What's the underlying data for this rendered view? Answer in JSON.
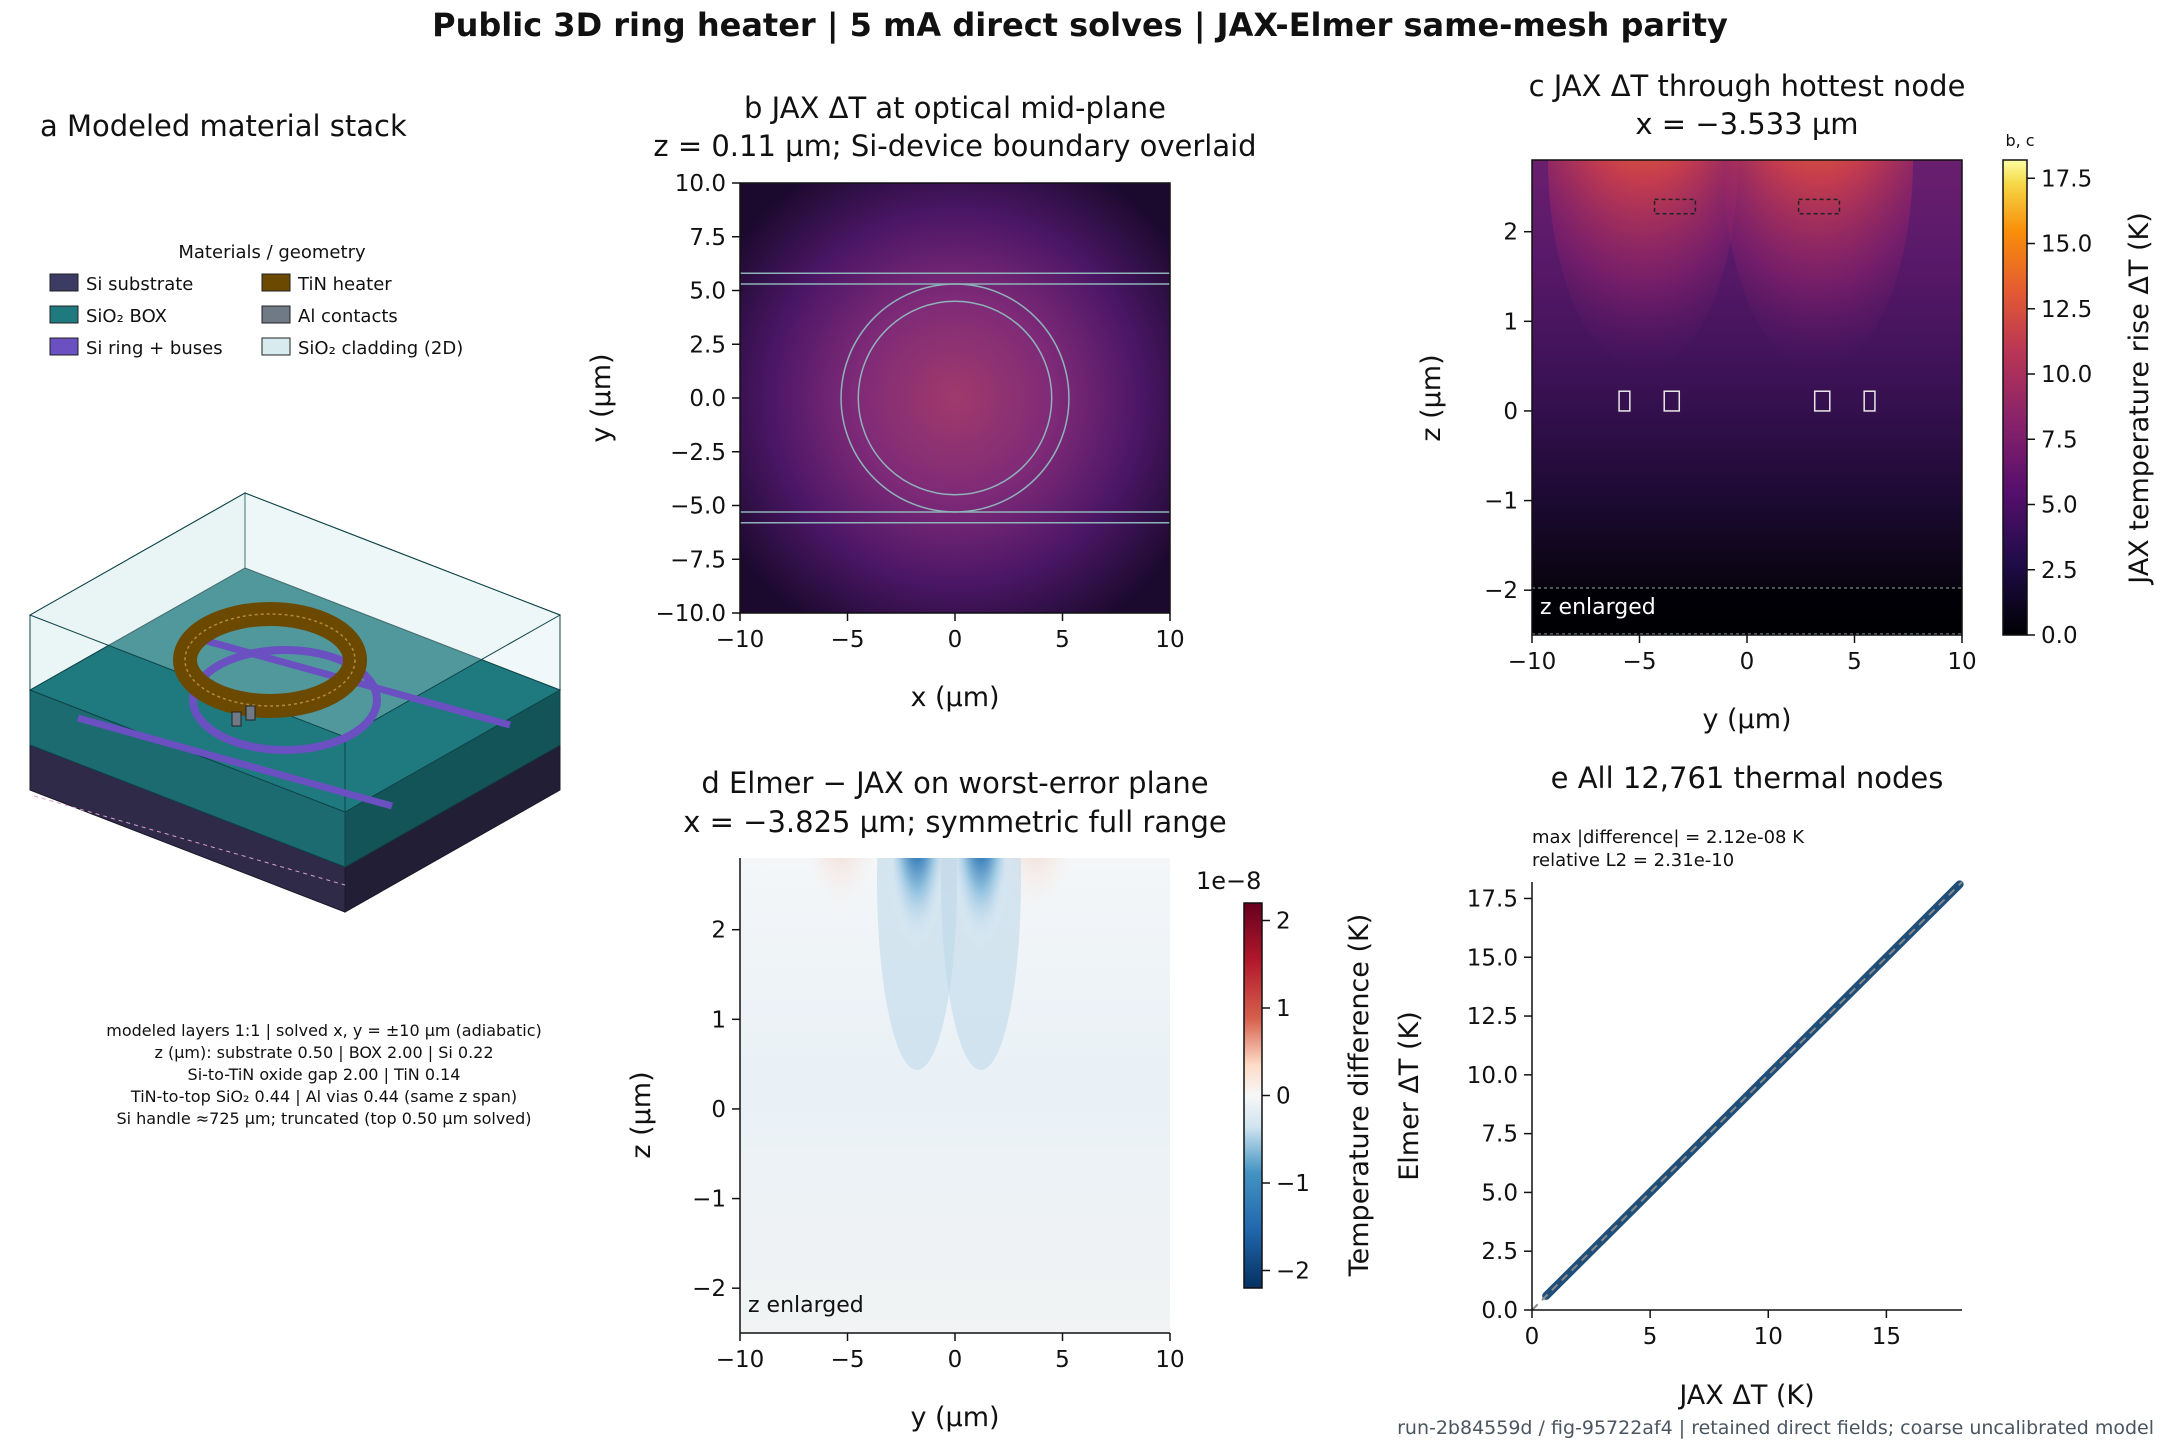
{
  "figure": {
    "title": "Public 3D ring heater | 5 mA direct solves | JAX-Elmer same-mesh parity",
    "footer": "run-2b84559d / fig-95722af4  |  retained direct fields; coarse uncalibrated model"
  },
  "panel_a": {
    "title": "a  Modeled material stack",
    "legend_title": "Materials / geometry",
    "legend": [
      {
        "label": "Si substrate",
        "color": "#3b3b63"
      },
      {
        "label": "TiN heater",
        "color": "#6b4a00"
      },
      {
        "label": "SiO₂ BOX",
        "color": "#1f7a80"
      },
      {
        "label": "Al contacts",
        "color": "#707a86"
      },
      {
        "label": "Si ring + buses",
        "color": "#6a50c0"
      },
      {
        "label": "SiO₂ cladding (2D)",
        "color": "#d8ecef"
      }
    ],
    "notes": [
      "modeled layers 1:1 | solved x, y = ±10 µm (adiabatic)",
      "z (µm): substrate 0.50 | BOX 2.00 | Si 0.22",
      "Si-to-TiN oxide gap 2.00 | TiN 0.14",
      "TiN-to-top SiO₂ 0.44 | Al vias 0.44 (same z span)",
      "Si handle ≈725 µm; truncated (top 0.50 µm solved)"
    ]
  },
  "chart_data": [
    {
      "panel": "b",
      "type": "heatmap",
      "title": "b  JAX ΔT at optical mid-plane",
      "subtitle": "z = 0.11 µm; Si-device boundary overlaid",
      "xlabel": "x (µm)",
      "ylabel": "y (µm)",
      "xlim": [
        -10,
        10
      ],
      "ylim": [
        -10,
        10
      ],
      "xticks": [
        "−10",
        "−5",
        "0",
        "5",
        "10"
      ],
      "yticks": [
        "10.0",
        "7.5",
        "5.0",
        "2.5",
        "0.0",
        "−2.5",
        "−5.0",
        "−7.5",
        "−10.0"
      ],
      "overlay": {
        "bus_y": [
          5.3,
          5.8,
          -5.3,
          -5.8
        ],
        "ring_radii": [
          4.5,
          5.3
        ],
        "ring_center": [
          0,
          0
        ]
      },
      "approx_peak_dT_K": 7.5
    },
    {
      "panel": "c",
      "type": "heatmap",
      "title": "c  JAX ΔT through hottest node",
      "subtitle": "x = −3.533 µm",
      "xlabel": "y (µm)",
      "ylabel": "z (µm)",
      "xlim": [
        -10,
        10
      ],
      "ylim": [
        -2.5,
        2.8
      ],
      "xticks": [
        "−10",
        "−5",
        "0",
        "5",
        "10"
      ],
      "yticks": [
        "2",
        "1",
        "0",
        "−1",
        "−2"
      ],
      "annotation": "z enlarged",
      "heater_y_ranges": [
        [
          -4.9,
          -1.8
        ],
        [
          1.8,
          4.9
        ]
      ],
      "heater_z_range": [
        2.2,
        2.36
      ],
      "waveguide_y_centers": [
        -5.7,
        -3.5,
        3.5,
        5.7
      ],
      "waveguide_z_range": [
        0.0,
        0.22
      ],
      "peak_dT_K": 18.0
    },
    {
      "panel": "c-colorbar",
      "type": "heatmap",
      "label": "JAX temperature rise ΔT (K)",
      "header": "b, c",
      "range": [
        0,
        18.2
      ],
      "ticks": [
        "17.5",
        "15.0",
        "12.5",
        "10.0",
        "7.5",
        "5.0",
        "2.5",
        "0.0"
      ],
      "colormap": "inferno"
    },
    {
      "panel": "d",
      "type": "heatmap",
      "title": "d  Elmer − JAX on worst-error plane",
      "subtitle": "x = −3.825 µm; symmetric full range",
      "xlabel": "y (µm)",
      "ylabel": "z (µm)",
      "xlim": [
        -10,
        10
      ],
      "ylim": [
        -2.5,
        2.8
      ],
      "xticks": [
        "−10",
        "−5",
        "0",
        "5",
        "10"
      ],
      "yticks": [
        "2",
        "1",
        "0",
        "−1",
        "−2"
      ],
      "annotation": "z enlarged",
      "colorbar_label": "Temperature difference (K)",
      "colorbar_scale": "1e−8",
      "colorbar_range": [
        -2.2,
        2.2
      ],
      "colorbar_ticks": [
        "2",
        "1",
        "0",
        "−1",
        "−2"
      ],
      "colormap": "RdBu_r",
      "extremes_y": [
        -1.8,
        1.3
      ]
    },
    {
      "panel": "e",
      "type": "scatter",
      "title": "e  All 12,761 thermal nodes",
      "stats": [
        "max |difference| = 2.12e-08 K",
        "relative L2 = 2.31e-10"
      ],
      "xlabel": "JAX ΔT (K)",
      "ylabel": "Elmer ΔT (K)",
      "xlim": [
        0,
        18.2
      ],
      "ylim": [
        0,
        18.2
      ],
      "xticks": [
        "0",
        "5",
        "10",
        "15"
      ],
      "yticks": [
        "17.5",
        "15.0",
        "12.5",
        "10.0",
        "7.5",
        "5.0",
        "2.5",
        "0.0"
      ],
      "series": [
        {
          "x_range": [
            0.6,
            18.1
          ],
          "y_range": [
            0.6,
            18.1
          ]
        }
      ],
      "reference_line": "y = x"
    }
  ]
}
